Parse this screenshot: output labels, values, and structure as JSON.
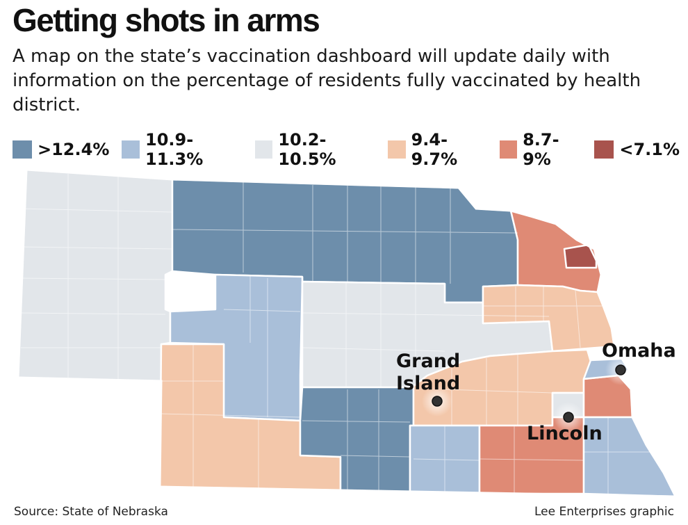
{
  "header": {
    "title": "Getting shots in arms",
    "subtitle": "A map on the state’s vaccination dashboard will update daily with information on the percentage of residents fully vaccinated by health district."
  },
  "legend": [
    {
      "label": ">12.4%",
      "color": "#6d8eab"
    },
    {
      "label": "10.9-11.3%",
      "color": "#a9bfd9"
    },
    {
      "label": "10.2-10.5%",
      "color": "#e2e6ea"
    },
    {
      "label": "9.4-9.7%",
      "color": "#f3c7aa"
    },
    {
      "label": "8.7-9%",
      "color": "#df8a75"
    },
    {
      "label": "<7.1%",
      "color": "#a8534d"
    }
  ],
  "cities": {
    "grand_island": "Grand\nIsland",
    "omaha": "Omaha",
    "lincoln": "Lincoln"
  },
  "footer": {
    "source": "Source: State of Nebraska",
    "credit": "Lee Enterprises graphic"
  }
}
